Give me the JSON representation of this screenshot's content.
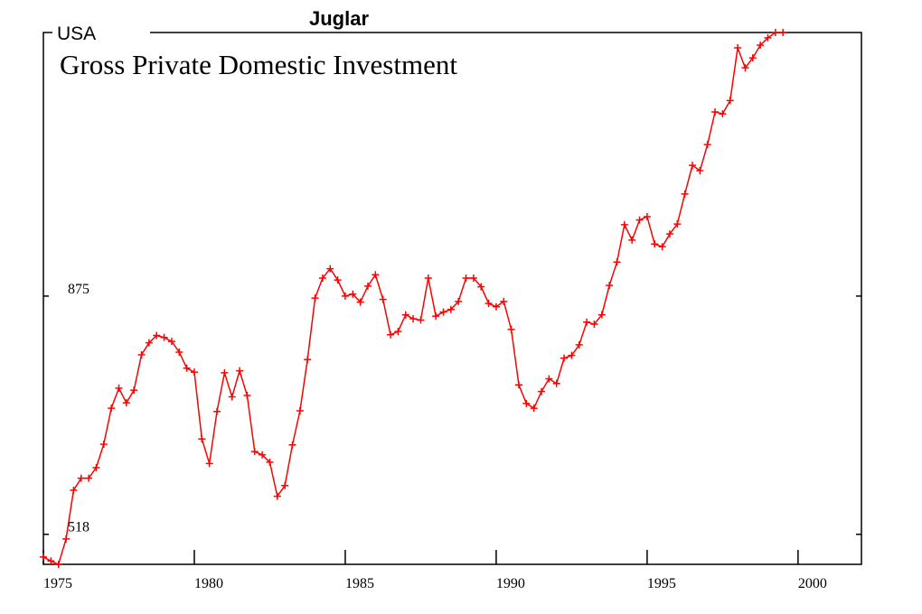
{
  "chart_data": {
    "type": "line",
    "suptitle": "Juglar",
    "region": "USA",
    "title": "Gross Private Domestic Investment",
    "x": [
      1975,
      1975.25,
      1975.5,
      1975.75,
      1976,
      1976.25,
      1976.5,
      1976.75,
      1977,
      1977.25,
      1977.5,
      1977.75,
      1978,
      1978.25,
      1978.5,
      1978.75,
      1979,
      1979.25,
      1979.5,
      1979.75,
      1980,
      1980.25,
      1980.5,
      1980.75,
      1981,
      1981.25,
      1981.5,
      1981.75,
      1982,
      1982.25,
      1982.5,
      1982.75,
      1983,
      1983.25,
      1983.5,
      1983.75,
      1984,
      1984.25,
      1984.5,
      1984.75,
      1985,
      1985.25,
      1985.5,
      1985.75,
      1986,
      1986.25,
      1986.5,
      1986.75,
      1987,
      1987.25,
      1987.5,
      1987.75,
      1988,
      1988.25,
      1988.5,
      1988.75,
      1989,
      1989.25,
      1989.5,
      1989.75,
      1990,
      1990.25,
      1990.5,
      1990.75,
      1991,
      1991.25,
      1991.5,
      1991.75,
      1992,
      1992.25,
      1992.5,
      1992.75,
      1993,
      1993.25,
      1993.5,
      1993.75,
      1994,
      1994.25,
      1994.5,
      1994.75,
      1995,
      1995.25,
      1995.5,
      1995.75,
      1996,
      1996.25,
      1996.5,
      1996.75,
      1997,
      1997.25,
      1997.5,
      1997.75,
      1998,
      1998.25,
      1998.5,
      1998.75,
      1999,
      1999.25,
      1999.5
    ],
    "values": [
      484,
      478,
      473,
      511,
      584,
      602,
      602,
      618,
      653,
      707,
      737,
      715,
      734,
      787,
      805,
      816,
      813,
      807,
      791,
      767,
      761,
      661,
      624,
      702,
      760,
      724,
      763,
      726,
      642,
      637,
      626,
      575,
      591,
      652,
      703,
      780,
      872,
      902,
      916,
      899,
      875,
      878,
      866,
      890,
      907,
      870,
      817,
      822,
      847,
      841,
      839,
      902,
      845,
      851,
      855,
      867,
      902,
      902,
      889,
      864,
      859,
      867,
      825,
      742,
      714,
      707,
      732,
      751,
      744,
      782,
      786,
      802,
      836,
      833,
      847,
      891,
      926,
      982,
      959,
      989,
      994,
      953,
      949,
      968,
      983,
      1028,
      1071,
      1063,
      1102,
      1151,
      1148,
      1168,
      1247,
      1217,
      1232,
      1251,
      1262,
      1270,
      1270
    ],
    "color": "#ff0000",
    "xlim": [
      1975,
      2002.1
    ],
    "xticks": [
      1975,
      1980,
      1985,
      1990,
      1995,
      2000
    ],
    "ylim": [
      473,
      1270
    ],
    "yticks": [
      518,
      875
    ]
  }
}
